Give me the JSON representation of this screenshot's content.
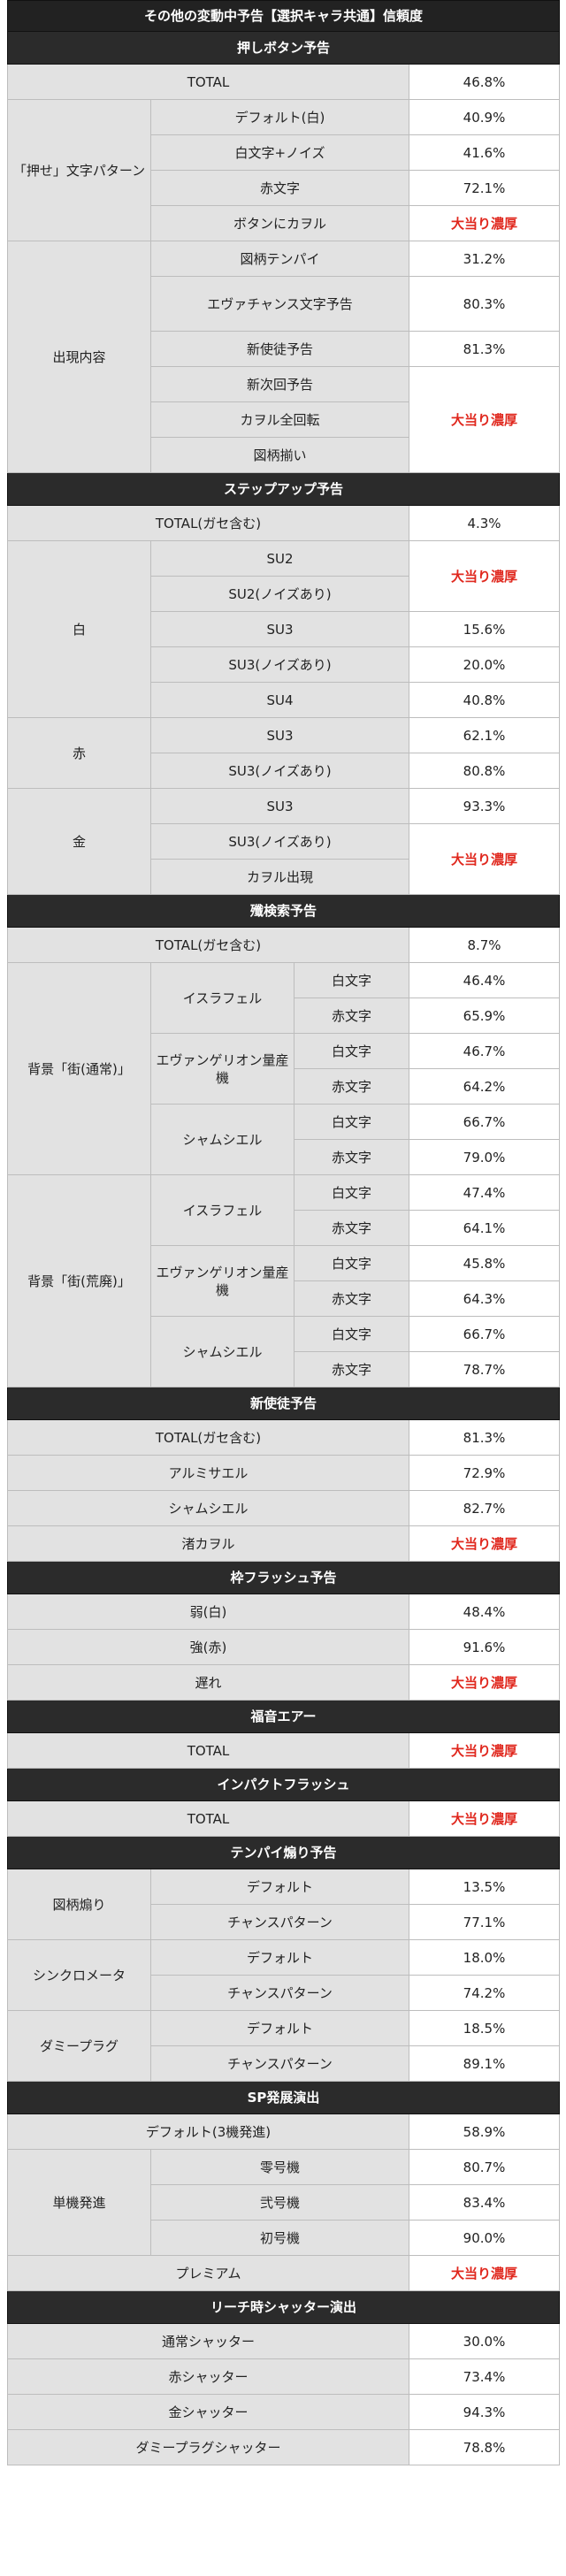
{
  "title": "その他の変動中予告【選択キャラ共通】信頼度",
  "red_color": "#e0281e",
  "sections": [
    {
      "heading": "押しボタン予告",
      "rows": [
        {
          "cells": [
            {
              "text": "TOTAL",
              "colspan": 3
            },
            {
              "text": "46.8%",
              "v": 1
            }
          ]
        },
        {
          "cells": [
            {
              "text": "「押せ」文字パターン",
              "rowspan": 4
            },
            {
              "text": "デフォルト(白)",
              "colspan": 2
            },
            {
              "text": "40.9%",
              "v": 1
            }
          ]
        },
        {
          "cells": [
            {
              "text": "白文字+ノイズ",
              "colspan": 2
            },
            {
              "text": "41.6%",
              "v": 1
            }
          ]
        },
        {
          "cells": [
            {
              "text": "赤文字",
              "colspan": 2
            },
            {
              "text": "72.1%",
              "v": 1
            }
          ]
        },
        {
          "cells": [
            {
              "text": "ボタンにカヲル",
              "colspan": 2
            },
            {
              "text": "大当り濃厚",
              "v": 1,
              "red": 1
            }
          ]
        },
        {
          "cells": [
            {
              "text": "出現内容",
              "rowspan": 6
            },
            {
              "text": "図柄テンパイ",
              "colspan": 2
            },
            {
              "text": "31.2%",
              "v": 1
            }
          ]
        },
        {
          "cells": [
            {
              "text": "エヴァチャンス文字予告",
              "colspan": 2
            },
            {
              "text": "80.3%",
              "v": 1
            }
          ],
          "tall": 1
        },
        {
          "cells": [
            {
              "text": "新使徒予告",
              "colspan": 2
            },
            {
              "text": "81.3%",
              "v": 1
            }
          ]
        },
        {
          "cells": [
            {
              "text": "新次回予告",
              "colspan": 2
            },
            {
              "text": "大当り濃厚",
              "v": 1,
              "red": 1,
              "rowspan": 3
            }
          ]
        },
        {
          "cells": [
            {
              "text": "カヲル全回転",
              "colspan": 2
            }
          ]
        },
        {
          "cells": [
            {
              "text": "図柄揃い",
              "colspan": 2
            }
          ]
        }
      ]
    },
    {
      "heading": "ステップアップ予告",
      "rows": [
        {
          "cells": [
            {
              "text": "TOTAL(ガセ含む)",
              "colspan": 3
            },
            {
              "text": "4.3%",
              "v": 1
            }
          ]
        },
        {
          "cells": [
            {
              "text": "白",
              "rowspan": 5
            },
            {
              "text": "SU2",
              "colspan": 2
            },
            {
              "text": "大当り濃厚",
              "v": 1,
              "red": 1,
              "rowspan": 2
            }
          ]
        },
        {
          "cells": [
            {
              "text": "SU2(ノイズあり)",
              "colspan": 2
            }
          ]
        },
        {
          "cells": [
            {
              "text": "SU3",
              "colspan": 2
            },
            {
              "text": "15.6%",
              "v": 1
            }
          ]
        },
        {
          "cells": [
            {
              "text": "SU3(ノイズあり)",
              "colspan": 2
            },
            {
              "text": "20.0%",
              "v": 1
            }
          ]
        },
        {
          "cells": [
            {
              "text": "SU4",
              "colspan": 2
            },
            {
              "text": "40.8%",
              "v": 1
            }
          ]
        },
        {
          "cells": [
            {
              "text": "赤",
              "rowspan": 2
            },
            {
              "text": "SU3",
              "colspan": 2
            },
            {
              "text": "62.1%",
              "v": 1
            }
          ]
        },
        {
          "cells": [
            {
              "text": "SU3(ノイズあり)",
              "colspan": 2
            },
            {
              "text": "80.8%",
              "v": 1
            }
          ]
        },
        {
          "cells": [
            {
              "text": "金",
              "rowspan": 3
            },
            {
              "text": "SU3",
              "colspan": 2
            },
            {
              "text": "93.3%",
              "v": 1
            }
          ]
        },
        {
          "cells": [
            {
              "text": "SU3(ノイズあり)",
              "colspan": 2
            },
            {
              "text": "大当り濃厚",
              "v": 1,
              "red": 1,
              "rowspan": 2
            }
          ]
        },
        {
          "cells": [
            {
              "text": "カヲル出現",
              "colspan": 2
            }
          ]
        }
      ]
    },
    {
      "heading": "殲検索予告",
      "rows": [
        {
          "cells": [
            {
              "text": "TOTAL(ガセ含む)",
              "colspan": 3
            },
            {
              "text": "8.7%",
              "v": 1
            }
          ]
        },
        {
          "cells": [
            {
              "text": "背景「街(通常)」",
              "rowspan": 6
            },
            {
              "text": "イスラフェル",
              "rowspan": 2
            },
            {
              "text": "白文字"
            },
            {
              "text": "46.4%",
              "v": 1
            }
          ]
        },
        {
          "cells": [
            {
              "text": "赤文字"
            },
            {
              "text": "65.9%",
              "v": 1
            }
          ]
        },
        {
          "cells": [
            {
              "text": "エヴァンゲリオン量産機",
              "rowspan": 2
            },
            {
              "text": "白文字"
            },
            {
              "text": "46.7%",
              "v": 1
            }
          ]
        },
        {
          "cells": [
            {
              "text": "赤文字"
            },
            {
              "text": "64.2%",
              "v": 1
            }
          ]
        },
        {
          "cells": [
            {
              "text": "シャムシエル",
              "rowspan": 2
            },
            {
              "text": "白文字"
            },
            {
              "text": "66.7%",
              "v": 1
            }
          ]
        },
        {
          "cells": [
            {
              "text": "赤文字"
            },
            {
              "text": "79.0%",
              "v": 1
            }
          ]
        },
        {
          "cells": [
            {
              "text": "背景「街(荒廃)」",
              "rowspan": 6
            },
            {
              "text": "イスラフェル",
              "rowspan": 2
            },
            {
              "text": "白文字"
            },
            {
              "text": "47.4%",
              "v": 1
            }
          ]
        },
        {
          "cells": [
            {
              "text": "赤文字"
            },
            {
              "text": "64.1%",
              "v": 1
            }
          ]
        },
        {
          "cells": [
            {
              "text": "エヴァンゲリオン量産機",
              "rowspan": 2
            },
            {
              "text": "白文字"
            },
            {
              "text": "45.8%",
              "v": 1
            }
          ]
        },
        {
          "cells": [
            {
              "text": "赤文字"
            },
            {
              "text": "64.3%",
              "v": 1
            }
          ]
        },
        {
          "cells": [
            {
              "text": "シャムシエル",
              "rowspan": 2
            },
            {
              "text": "白文字"
            },
            {
              "text": "66.7%",
              "v": 1
            }
          ]
        },
        {
          "cells": [
            {
              "text": "赤文字"
            },
            {
              "text": "78.7%",
              "v": 1
            }
          ]
        }
      ]
    },
    {
      "heading": "新使徒予告",
      "rows": [
        {
          "cells": [
            {
              "text": "TOTAL(ガセ含む)",
              "colspan": 3
            },
            {
              "text": "81.3%",
              "v": 1
            }
          ]
        },
        {
          "cells": [
            {
              "text": "アルミサエル",
              "colspan": 3
            },
            {
              "text": "72.9%",
              "v": 1
            }
          ]
        },
        {
          "cells": [
            {
              "text": "シャムシエル",
              "colspan": 3
            },
            {
              "text": "82.7%",
              "v": 1
            }
          ]
        },
        {
          "cells": [
            {
              "text": "渚カヲル",
              "colspan": 3
            },
            {
              "text": "大当り濃厚",
              "v": 1,
              "red": 1
            }
          ]
        }
      ]
    },
    {
      "heading": "枠フラッシュ予告",
      "rows": [
        {
          "cells": [
            {
              "text": "弱(白)",
              "colspan": 3
            },
            {
              "text": "48.4%",
              "v": 1
            }
          ]
        },
        {
          "cells": [
            {
              "text": "強(赤)",
              "colspan": 3
            },
            {
              "text": "91.6%",
              "v": 1
            }
          ]
        },
        {
          "cells": [
            {
              "text": "遅れ",
              "colspan": 3
            },
            {
              "text": "大当り濃厚",
              "v": 1,
              "red": 1
            }
          ]
        }
      ]
    },
    {
      "heading": "福音エアー",
      "rows": [
        {
          "cells": [
            {
              "text": "TOTAL",
              "colspan": 3
            },
            {
              "text": "大当り濃厚",
              "v": 1,
              "red": 1
            }
          ]
        }
      ]
    },
    {
      "heading": "インパクトフラッシュ",
      "rows": [
        {
          "cells": [
            {
              "text": "TOTAL",
              "colspan": 3
            },
            {
              "text": "大当り濃厚",
              "v": 1,
              "red": 1
            }
          ]
        }
      ]
    },
    {
      "heading": "テンパイ煽り予告",
      "rows": [
        {
          "cells": [
            {
              "text": "図柄煽り",
              "rowspan": 2
            },
            {
              "text": "デフォルト",
              "colspan": 2
            },
            {
              "text": "13.5%",
              "v": 1
            }
          ]
        },
        {
          "cells": [
            {
              "text": "チャンスパターン",
              "colspan": 2
            },
            {
              "text": "77.1%",
              "v": 1
            }
          ]
        },
        {
          "cells": [
            {
              "text": "シンクロメータ",
              "rowspan": 2
            },
            {
              "text": "デフォルト",
              "colspan": 2
            },
            {
              "text": "18.0%",
              "v": 1
            }
          ]
        },
        {
          "cells": [
            {
              "text": "チャンスパターン",
              "colspan": 2
            },
            {
              "text": "74.2%",
              "v": 1
            }
          ]
        },
        {
          "cells": [
            {
              "text": "ダミープラグ",
              "rowspan": 2
            },
            {
              "text": "デフォルト",
              "colspan": 2
            },
            {
              "text": "18.5%",
              "v": 1
            }
          ]
        },
        {
          "cells": [
            {
              "text": "チャンスパターン",
              "colspan": 2
            },
            {
              "text": "89.1%",
              "v": 1
            }
          ]
        }
      ]
    },
    {
      "heading": "SP発展演出",
      "rows": [
        {
          "cells": [
            {
              "text": "デフォルト(3機発進)",
              "colspan": 3
            },
            {
              "text": "58.9%",
              "v": 1
            }
          ]
        },
        {
          "cells": [
            {
              "text": "単機発進",
              "rowspan": 3
            },
            {
              "text": "零号機",
              "colspan": 2
            },
            {
              "text": "80.7%",
              "v": 1
            }
          ]
        },
        {
          "cells": [
            {
              "text": "弐号機",
              "colspan": 2
            },
            {
              "text": "83.4%",
              "v": 1
            }
          ]
        },
        {
          "cells": [
            {
              "text": "初号機",
              "colspan": 2
            },
            {
              "text": "90.0%",
              "v": 1
            }
          ]
        },
        {
          "cells": [
            {
              "text": "プレミアム",
              "colspan": 3
            },
            {
              "text": "大当り濃厚",
              "v": 1,
              "red": 1
            }
          ]
        }
      ]
    },
    {
      "heading": "リーチ時シャッター演出",
      "rows": [
        {
          "cells": [
            {
              "text": "通常シャッター",
              "colspan": 3
            },
            {
              "text": "30.0%",
              "v": 1
            }
          ]
        },
        {
          "cells": [
            {
              "text": "赤シャッター",
              "colspan": 3
            },
            {
              "text": "73.4%",
              "v": 1
            }
          ]
        },
        {
          "cells": [
            {
              "text": "金シャッター",
              "colspan": 3
            },
            {
              "text": "94.3%",
              "v": 1
            }
          ]
        },
        {
          "cells": [
            {
              "text": "ダミープラグシャッター",
              "colspan": 3
            },
            {
              "text": "78.8%",
              "v": 1
            }
          ]
        }
      ]
    }
  ]
}
